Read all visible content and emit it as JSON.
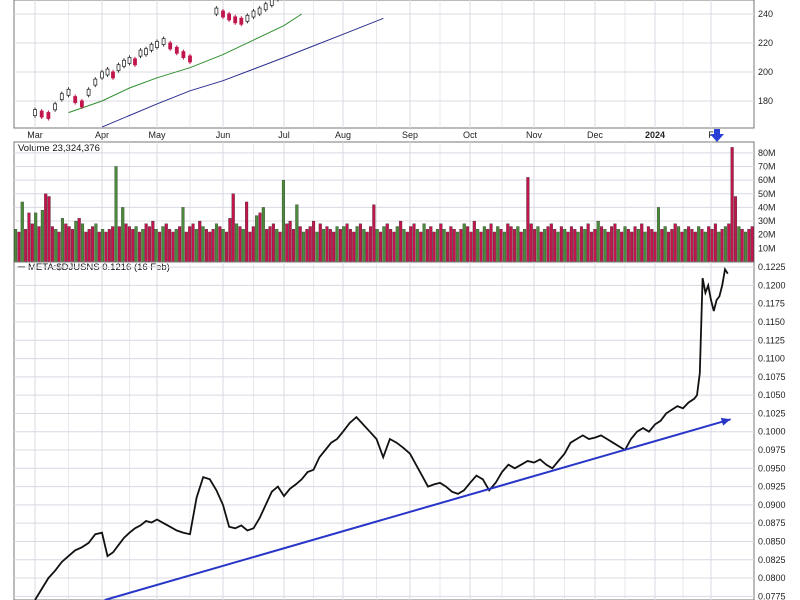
{
  "chart_data": [
    {
      "panel": "price",
      "type": "line",
      "note_y_visible_range": "partially cropped at top",
      "yticks": [
        180,
        200,
        220,
        240
      ],
      "months": [
        "Mar",
        "Apr",
        "May",
        "Jun",
        "Jul",
        "Aug",
        "Sep",
        "Oct",
        "Nov",
        "Dec",
        "2024",
        "F"
      ],
      "price_candles": [
        [
          0.0,
          172
        ],
        [
          0.1,
          171
        ],
        [
          0.2,
          170
        ],
        [
          0.3,
          176
        ],
        [
          0.4,
          183
        ],
        [
          0.5,
          186
        ],
        [
          0.6,
          181
        ],
        [
          0.7,
          178
        ],
        [
          0.8,
          186
        ],
        [
          0.9,
          193
        ],
        [
          1.0,
          198
        ],
        [
          1.1,
          200
        ],
        [
          1.2,
          198
        ],
        [
          1.3,
          203
        ],
        [
          1.4,
          206
        ],
        [
          1.5,
          208
        ],
        [
          1.6,
          207
        ],
        [
          1.7,
          213
        ],
        [
          1.8,
          214
        ],
        [
          1.9,
          217
        ],
        [
          2.0,
          219
        ],
        [
          2.1,
          221
        ],
        [
          2.2,
          218
        ],
        [
          2.3,
          215
        ],
        [
          2.4,
          212
        ],
        [
          2.5,
          209
        ],
        [
          2.9,
          242
        ],
        [
          3.0,
          240
        ],
        [
          3.1,
          238
        ],
        [
          3.2,
          236
        ],
        [
          3.3,
          235
        ],
        [
          3.4,
          237
        ],
        [
          3.5,
          240
        ],
        [
          3.6,
          242
        ],
        [
          3.7,
          245
        ],
        [
          3.8,
          248
        ],
        [
          3.9,
          252
        ]
      ],
      "ma_green": [
        [
          0.5,
          172
        ],
        [
          1.0,
          180
        ],
        [
          1.5,
          189
        ],
        [
          2.0,
          196
        ],
        [
          2.5,
          203
        ],
        [
          3.0,
          212
        ],
        [
          3.5,
          222
        ],
        [
          4.0,
          232
        ],
        [
          4.3,
          240
        ]
      ],
      "ma_blue": [
        [
          1.0,
          162
        ],
        [
          1.5,
          170
        ],
        [
          2.0,
          178
        ],
        [
          2.5,
          187
        ],
        [
          3.0,
          194
        ],
        [
          3.5,
          202
        ],
        [
          4.0,
          210
        ],
        [
          4.5,
          218
        ],
        [
          5.0,
          226
        ],
        [
          5.6,
          237
        ]
      ],
      "markers": [
        {
          "type": "arrow-down",
          "x_month": 11.0,
          "color": "#2a3fd6"
        }
      ]
    },
    {
      "panel": "volume",
      "type": "bar",
      "legend": "Volume 23,324,376",
      "yticks": [
        "10M",
        "20M",
        "30M",
        "40M",
        "50M",
        "60M",
        "70M",
        "80M"
      ],
      "ymax": 85,
      "volumes_m": [
        24,
        22,
        44,
        24,
        36,
        28,
        36,
        26,
        38,
        50,
        48,
        26,
        24,
        22,
        32,
        28,
        26,
        24,
        30,
        32,
        28,
        22,
        24,
        26,
        28,
        22,
        24,
        22,
        24,
        26,
        70,
        26,
        40,
        28,
        26,
        24,
        26,
        22,
        24,
        28,
        26,
        30,
        24,
        22,
        26,
        28,
        24,
        22,
        24,
        26,
        40,
        22,
        26,
        28,
        24,
        30,
        26,
        24,
        22,
        24,
        28,
        26,
        24,
        22,
        32,
        50,
        28,
        26,
        24,
        44,
        22,
        26,
        34,
        36,
        40,
        24,
        26,
        28,
        24,
        22,
        60,
        28,
        30,
        24,
        42,
        26,
        22,
        24,
        26,
        30,
        22,
        28,
        24,
        26,
        24,
        22,
        26,
        24,
        26,
        28,
        24,
        22,
        26,
        28,
        24,
        22,
        26,
        42,
        24,
        22,
        26,
        28,
        24,
        22,
        26,
        30,
        24,
        22,
        26,
        28,
        24,
        22,
        28,
        24,
        26,
        22,
        24,
        28,
        24,
        22,
        26,
        24,
        22,
        24,
        28,
        26,
        22,
        30,
        24,
        22,
        26,
        24,
        28,
        22,
        26,
        24,
        22,
        28,
        26,
        24,
        26,
        22,
        24,
        62,
        28,
        24,
        26,
        22,
        24,
        26,
        28,
        24,
        22,
        26,
        24,
        22,
        26,
        24,
        22,
        26,
        24,
        28,
        22,
        24,
        30,
        26,
        24,
        22,
        26,
        28,
        24,
        22,
        26,
        24,
        22,
        26,
        24,
        28,
        22,
        26,
        24,
        22,
        40,
        24,
        26,
        22,
        24,
        28,
        26,
        22,
        24,
        26,
        24,
        22,
        26,
        24,
        22,
        26,
        24,
        28,
        22,
        24,
        26,
        28,
        84,
        48,
        26,
        24,
        22,
        24,
        26
      ]
    },
    {
      "panel": "ratio",
      "type": "line",
      "legend": "META:$DJUSNS 0.1216 (16 Feb)",
      "yticks": [
        "0.0775",
        "0.0800",
        "0.0825",
        "0.0850",
        "0.0875",
        "0.0900",
        "0.0925",
        "0.0950",
        "0.0975",
        "0.1000",
        "0.1025",
        "0.1050",
        "0.1075",
        "0.1100",
        "0.1125",
        "0.1150",
        "0.1175",
        "0.1200",
        "0.1225"
      ],
      "ymin": 0.077,
      "ymax": 0.1232,
      "series": [
        [
          0.0,
          0.077
        ],
        [
          0.1,
          0.0785
        ],
        [
          0.2,
          0.08
        ],
        [
          0.3,
          0.081
        ],
        [
          0.4,
          0.0822
        ],
        [
          0.5,
          0.083
        ],
        [
          0.6,
          0.0838
        ],
        [
          0.7,
          0.0842
        ],
        [
          0.8,
          0.0848
        ],
        [
          0.9,
          0.086
        ],
        [
          1.0,
          0.0862
        ],
        [
          1.1,
          0.083
        ],
        [
          1.2,
          0.0835
        ],
        [
          1.3,
          0.0845
        ],
        [
          1.4,
          0.0855
        ],
        [
          1.5,
          0.0862
        ],
        [
          1.6,
          0.0868
        ],
        [
          1.7,
          0.0872
        ],
        [
          1.8,
          0.0878
        ],
        [
          1.9,
          0.0876
        ],
        [
          2.0,
          0.088
        ],
        [
          2.1,
          0.0875
        ],
        [
          2.2,
          0.087
        ],
        [
          2.3,
          0.0865
        ],
        [
          2.4,
          0.0862
        ],
        [
          2.5,
          0.086
        ],
        [
          2.6,
          0.091
        ],
        [
          2.7,
          0.0938
        ],
        [
          2.8,
          0.0935
        ],
        [
          2.9,
          0.092
        ],
        [
          3.0,
          0.09
        ],
        [
          3.1,
          0.087
        ],
        [
          3.2,
          0.0868
        ],
        [
          3.3,
          0.0872
        ],
        [
          3.4,
          0.0865
        ],
        [
          3.5,
          0.0868
        ],
        [
          3.6,
          0.0882
        ],
        [
          3.7,
          0.09
        ],
        [
          3.8,
          0.0918
        ],
        [
          3.9,
          0.0925
        ],
        [
          4.0,
          0.0912
        ],
        [
          4.1,
          0.0922
        ],
        [
          4.2,
          0.0928
        ],
        [
          4.3,
          0.0935
        ],
        [
          4.4,
          0.0945
        ],
        [
          4.5,
          0.0948
        ],
        [
          4.6,
          0.0965
        ],
        [
          4.7,
          0.0975
        ],
        [
          4.8,
          0.0985
        ],
        [
          4.9,
          0.099
        ],
        [
          5.0,
          0.1
        ],
        [
          5.1,
          0.1012
        ],
        [
          5.2,
          0.102
        ],
        [
          5.3,
          0.101
        ],
        [
          5.4,
          0.1
        ],
        [
          5.5,
          0.099
        ],
        [
          5.6,
          0.0965
        ],
        [
          5.7,
          0.099
        ],
        [
          5.8,
          0.0985
        ],
        [
          5.9,
          0.0978
        ],
        [
          6.0,
          0.097
        ],
        [
          6.1,
          0.0955
        ],
        [
          6.2,
          0.094
        ],
        [
          6.3,
          0.0925
        ],
        [
          6.4,
          0.0928
        ],
        [
          6.5,
          0.093
        ],
        [
          6.6,
          0.0925
        ],
        [
          6.7,
          0.0918
        ],
        [
          6.8,
          0.0915
        ],
        [
          6.9,
          0.092
        ],
        [
          7.0,
          0.093
        ],
        [
          7.1,
          0.094
        ],
        [
          7.2,
          0.0935
        ],
        [
          7.3,
          0.092
        ],
        [
          7.4,
          0.093
        ],
        [
          7.5,
          0.0945
        ],
        [
          7.6,
          0.0955
        ],
        [
          7.7,
          0.095
        ],
        [
          7.8,
          0.0955
        ],
        [
          7.9,
          0.096
        ],
        [
          8.0,
          0.0958
        ],
        [
          8.1,
          0.0962
        ],
        [
          8.2,
          0.0955
        ],
        [
          8.3,
          0.095
        ],
        [
          8.4,
          0.096
        ],
        [
          8.5,
          0.097
        ],
        [
          8.6,
          0.0985
        ],
        [
          8.7,
          0.099
        ],
        [
          8.8,
          0.0995
        ],
        [
          8.9,
          0.099
        ],
        [
          9.0,
          0.0992
        ],
        [
          9.1,
          0.0995
        ],
        [
          9.2,
          0.099
        ],
        [
          9.3,
          0.0985
        ],
        [
          9.4,
          0.098
        ],
        [
          9.5,
          0.0975
        ],
        [
          9.6,
          0.099
        ],
        [
          9.7,
          0.1
        ],
        [
          9.8,
          0.1005
        ],
        [
          9.9,
          0.1
        ],
        [
          10.0,
          0.101
        ],
        [
          10.1,
          0.1015
        ],
        [
          10.2,
          0.1025
        ],
        [
          10.3,
          0.103
        ],
        [
          10.4,
          0.1035
        ],
        [
          10.5,
          0.1032
        ],
        [
          10.6,
          0.104
        ],
        [
          10.7,
          0.1045
        ],
        [
          10.75,
          0.105
        ],
        [
          10.8,
          0.108
        ],
        [
          10.85,
          0.121
        ],
        [
          10.9,
          0.119
        ],
        [
          10.95,
          0.12
        ],
        [
          11.0,
          0.118
        ],
        [
          11.05,
          0.1165
        ],
        [
          11.1,
          0.118
        ],
        [
          11.15,
          0.1185
        ],
        [
          11.2,
          0.12
        ],
        [
          11.25,
          0.1222
        ],
        [
          11.3,
          0.1216
        ]
      ],
      "trendline": [
        [
          1.05,
          0.077
        ],
        [
          11.35,
          0.1017
        ]
      ]
    }
  ],
  "x_axis": {
    "months": [
      "Mar",
      "Apr",
      "May",
      "Jun",
      "Jul",
      "Aug",
      "Sep",
      "Oct",
      "Nov",
      "Dec",
      "2024",
      "F"
    ]
  },
  "colors": {
    "grid": "#d9d9e3",
    "up": "#4b8a3a",
    "down": "#c0164c",
    "price_ma_green": "#2f8f2f",
    "price_ma_blue": "#2a2f8f",
    "ratio_line": "#111111",
    "trend_blue": "#2836c8",
    "marker_blue": "#2a3fd6"
  }
}
